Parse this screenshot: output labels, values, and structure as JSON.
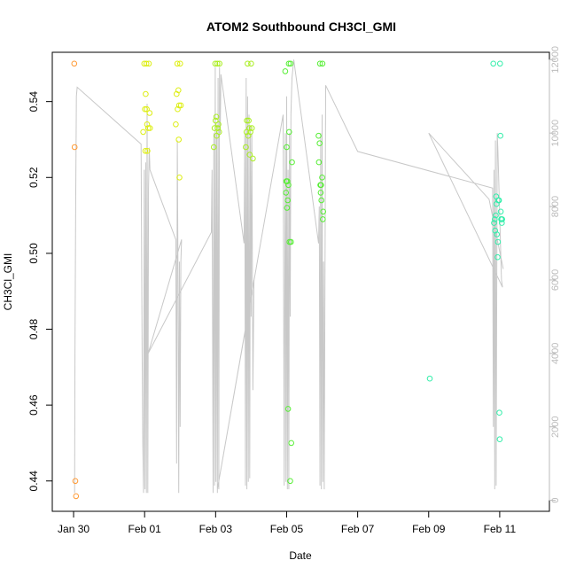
{
  "chart_data": {
    "type": "scatter",
    "title": "ATOM2 Southbound CH3Cl_GMI",
    "xlabel": "Date",
    "ylabel": "CH3Cl_GMI",
    "x_range_days_rel_jan28": [
      1.4,
      15.4
    ],
    "xticks": [
      {
        "label": "Jan 30",
        "day": 2
      },
      {
        "label": "Feb 01",
        "day": 4
      },
      {
        "label": "Feb 03",
        "day": 6
      },
      {
        "label": "Feb 05",
        "day": 8
      },
      {
        "label": "Feb 07",
        "day": 10
      },
      {
        "label": "Feb 09",
        "day": 12
      },
      {
        "label": "Feb 11",
        "day": 14
      }
    ],
    "ylim": [
      0.432,
      0.553
    ],
    "yticks": [
      {
        "label": "0.44",
        "value": 0.44
      },
      {
        "label": "0.46",
        "value": 0.46
      },
      {
        "label": "0.48",
        "value": 0.48
      },
      {
        "label": "0.50",
        "value": 0.5
      },
      {
        "label": "0.52",
        "value": 0.52
      },
      {
        "label": "0.54",
        "value": 0.54
      }
    ],
    "y2lim": [
      -300,
      12200
    ],
    "y2ticks": [
      {
        "label": "0",
        "value": 0
      },
      {
        "label": "2000",
        "value": 2000
      },
      {
        "label": "4000",
        "value": 4000
      },
      {
        "label": "6000",
        "value": 6000
      },
      {
        "label": "8000",
        "value": 8000
      },
      {
        "label": "10000",
        "value": 10000
      },
      {
        "label": "12000",
        "value": 12000
      }
    ],
    "grid": false,
    "point_series": [
      {
        "color": "#ff9933",
        "points": [
          [
            2.02,
            0.55
          ],
          [
            2.03,
            0.528
          ],
          [
            2.05,
            0.44
          ],
          [
            2.07,
            0.436
          ]
        ]
      },
      {
        "color": "#ddee11",
        "points": [
          [
            3.96,
            0.532
          ],
          [
            3.99,
            0.55
          ],
          [
            4.01,
            0.538
          ],
          [
            4.02,
            0.527
          ],
          [
            4.03,
            0.542
          ],
          [
            4.05,
            0.55
          ],
          [
            4.06,
            0.538
          ],
          [
            4.07,
            0.534
          ],
          [
            4.08,
            0.527
          ],
          [
            4.1,
            0.533
          ],
          [
            4.12,
            0.55
          ],
          [
            4.14,
            0.537
          ],
          [
            4.15,
            0.533
          ],
          [
            4.88,
            0.534
          ],
          [
            4.9,
            0.542
          ],
          [
            4.92,
            0.55
          ],
          [
            4.93,
            0.538
          ],
          [
            4.95,
            0.543
          ],
          [
            4.96,
            0.53
          ],
          [
            4.97,
            0.539
          ],
          [
            4.98,
            0.52
          ],
          [
            5.0,
            0.55
          ],
          [
            5.02,
            0.539
          ]
        ]
      },
      {
        "color": "#aaee22",
        "points": [
          [
            5.95,
            0.528
          ],
          [
            5.97,
            0.533
          ],
          [
            5.99,
            0.55
          ],
          [
            6.0,
            0.535
          ],
          [
            6.02,
            0.536
          ],
          [
            6.03,
            0.531
          ],
          [
            6.05,
            0.55
          ],
          [
            6.06,
            0.533
          ],
          [
            6.08,
            0.534
          ],
          [
            6.1,
            0.532
          ],
          [
            6.11,
            0.55
          ],
          [
            6.85,
            0.528
          ],
          [
            6.87,
            0.532
          ],
          [
            6.88,
            0.535
          ],
          [
            6.9,
            0.55
          ],
          [
            6.92,
            0.531
          ],
          [
            6.93,
            0.535
          ],
          [
            6.95,
            0.533
          ],
          [
            6.96,
            0.526
          ],
          [
            6.98,
            0.532
          ],
          [
            7.0,
            0.55
          ],
          [
            7.02,
            0.533
          ],
          [
            7.05,
            0.525
          ]
        ]
      },
      {
        "color": "#55ee33",
        "points": [
          [
            7.96,
            0.548
          ],
          [
            7.98,
            0.516
          ],
          [
            7.99,
            0.519
          ],
          [
            8.0,
            0.528
          ],
          [
            8.01,
            0.512
          ],
          [
            8.02,
            0.519
          ],
          [
            8.03,
            0.514
          ],
          [
            8.04,
            0.459
          ],
          [
            8.05,
            0.518
          ],
          [
            8.06,
            0.55
          ],
          [
            8.07,
            0.532
          ],
          [
            8.08,
            0.503
          ],
          [
            8.1,
            0.44
          ],
          [
            8.11,
            0.55
          ],
          [
            8.12,
            0.503
          ],
          [
            8.13,
            0.45
          ],
          [
            8.15,
            0.524
          ],
          [
            8.9,
            0.531
          ],
          [
            8.91,
            0.524
          ],
          [
            8.93,
            0.529
          ],
          [
            8.94,
            0.55
          ],
          [
            8.95,
            0.518
          ],
          [
            8.96,
            0.516
          ],
          [
            8.97,
            0.518
          ],
          [
            8.98,
            0.514
          ],
          [
            9.0,
            0.52
          ],
          [
            9.01,
            0.55
          ],
          [
            9.02,
            0.509
          ],
          [
            9.03,
            0.511
          ]
        ]
      },
      {
        "color": "#33eeaa",
        "points": [
          [
            12.03,
            0.467
          ],
          [
            13.82,
            0.55
          ],
          [
            13.84,
            0.508
          ],
          [
            13.86,
            0.509
          ],
          [
            13.87,
            0.506
          ],
          [
            13.89,
            0.51
          ],
          [
            13.9,
            0.515
          ],
          [
            13.91,
            0.513
          ],
          [
            13.92,
            0.505
          ],
          [
            13.94,
            0.499
          ],
          [
            13.95,
            0.503
          ],
          [
            13.96,
            0.514
          ],
          [
            13.98,
            0.514
          ],
          [
            13.99,
            0.458
          ],
          [
            14.0,
            0.451
          ],
          [
            14.01,
            0.55
          ],
          [
            14.02,
            0.531
          ],
          [
            14.03,
            0.511
          ],
          [
            14.04,
            0.509
          ],
          [
            14.05,
            0.509
          ],
          [
            14.06,
            0.508
          ],
          [
            14.07,
            0.509
          ]
        ]
      }
    ],
    "altitude_line": {
      "color": "#c8c8c8",
      "axis": "right",
      "points": [
        [
          2.03,
          200
        ],
        [
          2.04,
          4000
        ],
        [
          2.06,
          8000
        ],
        [
          2.08,
          11000
        ],
        [
          2.1,
          11250
        ],
        [
          3.9,
          9700
        ],
        [
          3.93,
          4000
        ],
        [
          3.95,
          1500
        ],
        [
          3.97,
          200
        ],
        [
          3.99,
          9000
        ],
        [
          4.01,
          300
        ],
        [
          4.03,
          9200
        ],
        [
          4.05,
          200
        ],
        [
          4.07,
          10800
        ],
        [
          4.09,
          200
        ],
        [
          4.11,
          8500
        ],
        [
          4.13,
          9600
        ],
        [
          4.15,
          9000
        ],
        [
          4.88,
          7100
        ],
        [
          4.9,
          1000
        ],
        [
          4.92,
          9800
        ],
        [
          4.94,
          6000
        ],
        [
          4.96,
          200
        ],
        [
          4.98,
          6500
        ],
        [
          5.0,
          2000
        ],
        [
          5.02,
          6500
        ],
        [
          5.04,
          7100
        ],
        [
          4.1,
          4000
        ],
        [
          5.88,
          7300
        ],
        [
          5.9,
          9000
        ],
        [
          5.93,
          200
        ],
        [
          5.95,
          10000
        ],
        [
          5.97,
          400
        ],
        [
          5.99,
          11800
        ],
        [
          6.01,
          500
        ],
        [
          6.03,
          10000
        ],
        [
          6.05,
          200
        ],
        [
          6.07,
          11500
        ],
        [
          6.09,
          300
        ],
        [
          6.11,
          11800
        ],
        [
          6.13,
          10000
        ],
        [
          6.15,
          11600
        ],
        [
          6.8,
          7000
        ],
        [
          6.82,
          10000
        ],
        [
          6.84,
          400
        ],
        [
          6.86,
          11500
        ],
        [
          6.88,
          300
        ],
        [
          6.9,
          11000
        ],
        [
          6.92,
          500
        ],
        [
          6.94,
          10500
        ],
        [
          6.96,
          600
        ],
        [
          6.98,
          10200
        ],
        [
          7.0,
          5000
        ],
        [
          7.02,
          10000
        ],
        [
          7.05,
          3000
        ],
        [
          7.08,
          6000
        ],
        [
          6.05,
          300
        ],
        [
          7.9,
          10500
        ],
        [
          7.93,
          400
        ],
        [
          7.96,
          10000
        ],
        [
          7.98,
          500
        ],
        [
          8.0,
          11000
        ],
        [
          8.02,
          300
        ],
        [
          8.04,
          9000
        ],
        [
          8.06,
          300
        ],
        [
          8.08,
          10000
        ],
        [
          8.1,
          5000
        ],
        [
          8.12,
          10500
        ],
        [
          8.15,
          11500
        ],
        [
          8.2,
          12000
        ],
        [
          8.9,
          7000
        ],
        [
          8.92,
          8000
        ],
        [
          8.94,
          400
        ],
        [
          8.96,
          10000
        ],
        [
          8.98,
          300
        ],
        [
          9.0,
          10500
        ],
        [
          9.02,
          500
        ],
        [
          9.04,
          6500
        ],
        [
          9.06,
          300
        ],
        [
          9.1,
          11300
        ],
        [
          10.0,
          9500
        ],
        [
          13.8,
          8500
        ],
        [
          13.82,
          2000
        ],
        [
          13.84,
          9000
        ],
        [
          13.86,
          300
        ],
        [
          13.88,
          9800
        ],
        [
          13.9,
          400
        ],
        [
          13.93,
          10000
        ],
        [
          13.95,
          9500
        ],
        [
          14.05,
          6000
        ],
        [
          14.08,
          5800
        ],
        [
          12.0,
          10000
        ],
        [
          13.7,
          8200
        ],
        [
          14.1,
          6300
        ]
      ]
    }
  }
}
